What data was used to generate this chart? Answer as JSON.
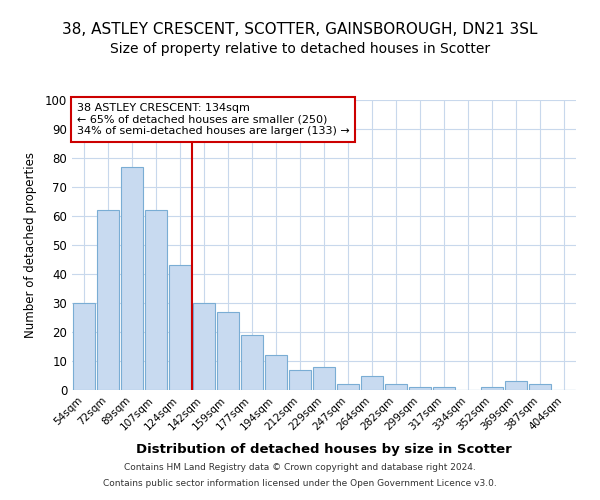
{
  "title1": "38, ASTLEY CRESCENT, SCOTTER, GAINSBOROUGH, DN21 3SL",
  "title2": "Size of property relative to detached houses in Scotter",
  "xlabel": "Distribution of detached houses by size in Scotter",
  "ylabel": "Number of detached properties",
  "categories": [
    "54sqm",
    "72sqm",
    "89sqm",
    "107sqm",
    "124sqm",
    "142sqm",
    "159sqm",
    "177sqm",
    "194sqm",
    "212sqm",
    "229sqm",
    "247sqm",
    "264sqm",
    "282sqm",
    "299sqm",
    "317sqm",
    "334sqm",
    "352sqm",
    "369sqm",
    "387sqm",
    "404sqm"
  ],
  "values": [
    30,
    62,
    77,
    62,
    43,
    30,
    27,
    19,
    12,
    7,
    8,
    2,
    5,
    2,
    1,
    1,
    0,
    1,
    3,
    2,
    0
  ],
  "bar_color": "#c8daf0",
  "bar_edge_color": "#7aadd4",
  "vline_x_idx": 5,
  "vline_color": "#cc0000",
  "annotation_text": "38 ASTLEY CRESCENT: 134sqm\n← 65% of detached houses are smaller (250)\n34% of semi-detached houses are larger (133) →",
  "annotation_box_color": "#ffffff",
  "annotation_box_edge": "#cc0000",
  "ylim": [
    0,
    100
  ],
  "yticks": [
    0,
    10,
    20,
    30,
    40,
    50,
    60,
    70,
    80,
    90,
    100
  ],
  "footer1": "Contains HM Land Registry data © Crown copyright and database right 2024.",
  "footer2": "Contains public sector information licensed under the Open Government Licence v3.0.",
  "bg_color": "#ffffff",
  "plot_bg_color": "#ffffff",
  "grid_color": "#c8d8ec",
  "title1_fontsize": 11,
  "title2_fontsize": 10
}
